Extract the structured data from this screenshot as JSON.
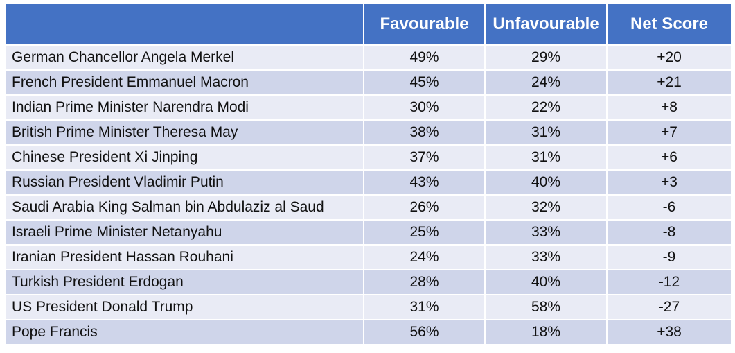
{
  "chart_data": {
    "type": "table",
    "columns": [
      "",
      "Favourable",
      "Unfavourable",
      "Net Score"
    ],
    "rows": [
      {
        "name": "German Chancellor Angela Merkel",
        "favourable": "49%",
        "unfavourable": "29%",
        "net": "+20"
      },
      {
        "name": "French President Emmanuel Macron",
        "favourable": "45%",
        "unfavourable": "24%",
        "net": "+21"
      },
      {
        "name": "Indian Prime Minister Narendra Modi",
        "favourable": "30%",
        "unfavourable": "22%",
        "net": "+8"
      },
      {
        "name": "British Prime Minister Theresa May",
        "favourable": "38%",
        "unfavourable": "31%",
        "net": "+7"
      },
      {
        "name": "Chinese President Xi Jinping",
        "favourable": "37%",
        "unfavourable": "31%",
        "net": "+6"
      },
      {
        "name": "Russian President Vladimir Putin",
        "favourable": "43%",
        "unfavourable": "40%",
        "net": "+3"
      },
      {
        "name": "Saudi Arabia King Salman bin Abdulaziz al Saud",
        "favourable": "26%",
        "unfavourable": "32%",
        "net": "-6"
      },
      {
        "name": "Israeli Prime Minister Netanyahu",
        "favourable": "25%",
        "unfavourable": "33%",
        "net": "-8"
      },
      {
        "name": "Iranian President Hassan Rouhani",
        "favourable": "24%",
        "unfavourable": "33%",
        "net": "-9"
      },
      {
        "name": "Turkish President Erdogan",
        "favourable": "28%",
        "unfavourable": "40%",
        "net": "-12"
      },
      {
        "name": "US President Donald Trump",
        "favourable": "31%",
        "unfavourable": "58%",
        "net": "-27"
      },
      {
        "name": "Pope Francis",
        "favourable": "56%",
        "unfavourable": "18%",
        "net": "+38"
      }
    ],
    "colors": {
      "header_bg": "#4472c4",
      "header_text": "#ffffff",
      "row_light": "#e9ebf5",
      "row_dark": "#cfd5ea"
    }
  }
}
